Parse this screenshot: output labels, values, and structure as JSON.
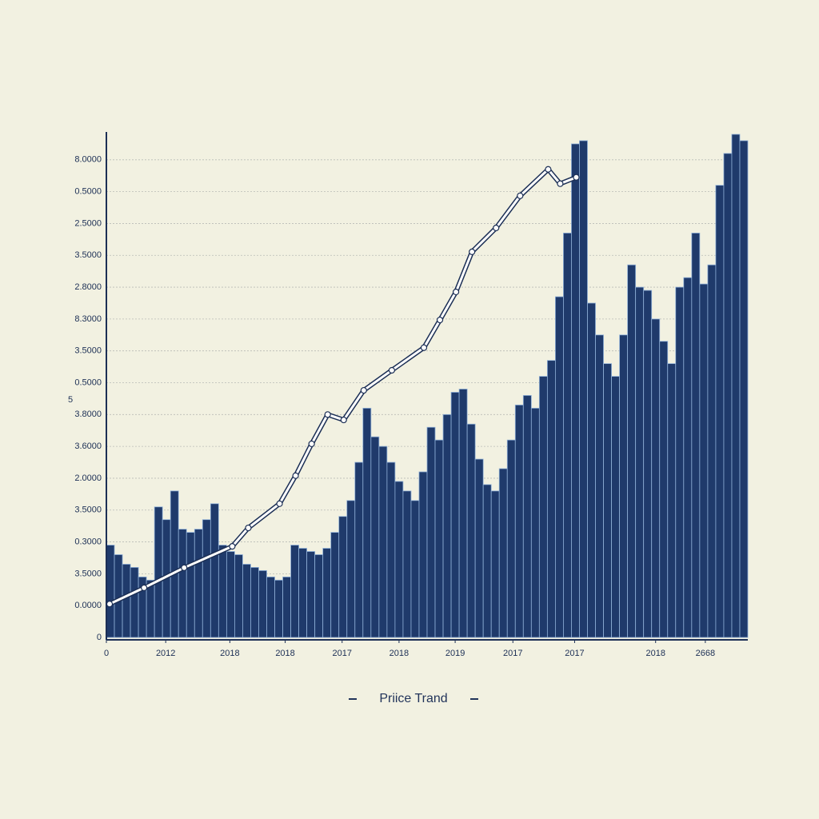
{
  "chart_data": {
    "type": "bar",
    "title": "Priice Trand",
    "ylabel": "5",
    "ylim": [
      0,
      16
    ],
    "xlim": [
      0,
      80
    ],
    "grid": true,
    "yticks": [
      0,
      {
        "value": 1,
        "label": "0.0000"
      },
      {
        "value": 2,
        "label": "3.5000"
      },
      {
        "value": 3,
        "label": "0.3000"
      },
      {
        "value": 4,
        "label": "3.5000"
      },
      {
        "value": 5,
        "label": "2.0000"
      },
      {
        "value": 6,
        "label": "3.6000"
      },
      {
        "value": 7,
        "label": "3.8000"
      },
      {
        "value": 8,
        "label": "0.5000"
      },
      {
        "value": 9,
        "label": "3.5000"
      },
      {
        "value": 10,
        "label": "8.3000"
      },
      {
        "value": 11,
        "label": "2.8000"
      },
      {
        "value": 12,
        "label": "3.5000"
      },
      {
        "value": 13,
        "label": "2.5000"
      },
      {
        "value": 14,
        "label": "0.5000"
      },
      {
        "value": 15,
        "label": "8.0000"
      }
    ],
    "xticks": [
      0,
      {
        "value": 7.4,
        "label": "2012"
      },
      {
        "value": 15.4,
        "label": "2018"
      },
      {
        "value": 22.3,
        "label": "2018"
      },
      {
        "value": 29.4,
        "label": "2017"
      },
      {
        "value": 36.5,
        "label": "2018"
      },
      {
        "value": 43.5,
        "label": "2019"
      },
      {
        "value": 50.7,
        "label": "2017"
      },
      {
        "value": 58.4,
        "label": "2017"
      },
      {
        "value": 68.5,
        "label": "2018"
      },
      {
        "value": 74.7,
        "label": "2668"
      }
    ],
    "series": [
      {
        "type": "bar",
        "color": "#1f3a6b",
        "x": [
          0.5,
          1.5,
          2.5,
          3.5,
          4.5,
          5.5,
          6.5,
          7.5,
          8.5,
          9.5,
          10.5,
          11.5,
          12.5,
          13.5,
          14.5,
          15.5,
          16.5,
          17.5,
          18.5,
          19.5,
          20.5,
          21.5,
          22.5,
          23.5,
          24.5,
          25.5,
          26.5,
          27.5,
          28.5,
          29.5,
          30.5,
          31.5,
          32.5,
          33.5,
          34.5,
          35.5,
          36.5,
          37.5,
          38.5,
          39.5,
          40.5,
          41.5,
          42.5,
          43.5,
          44.5,
          45.5,
          46.5,
          47.5,
          48.5,
          49.5,
          50.5,
          51.5,
          52.5,
          53.5,
          54.5,
          55.5,
          56.5,
          57.5,
          58.5,
          59.5,
          60.5,
          61.5,
          62.5,
          63.5,
          64.5,
          65.5,
          66.5,
          67.5,
          68.5,
          69.5,
          70.5,
          71.5,
          72.5,
          73.5,
          74.5,
          75.5,
          76.5,
          77.5,
          78.5,
          79.5
        ],
        "values": [
          2.9,
          2.6,
          2.3,
          2.2,
          1.9,
          1.8,
          4.1,
          3.7,
          4.6,
          3.4,
          3.3,
          3.4,
          3.7,
          4.2,
          2.9,
          2.7,
          2.6,
          2.3,
          2.2,
          2.1,
          1.9,
          1.8,
          1.9,
          2.9,
          2.8,
          2.7,
          2.6,
          2.8,
          3.3,
          3.8,
          4.3,
          5.5,
          7.2,
          6.3,
          6.0,
          5.5,
          4.9,
          4.6,
          4.3,
          5.2,
          6.6,
          6.2,
          7.0,
          7.7,
          7.8,
          6.7,
          5.6,
          4.8,
          4.6,
          5.3,
          6.2,
          7.3,
          7.6,
          7.2,
          8.2,
          8.7,
          10.7,
          12.7,
          15.5,
          15.6,
          10.5,
          9.5,
          8.6,
          8.2,
          9.5,
          11.7,
          11.0,
          10.9,
          10.0,
          9.3,
          8.6,
          11.0,
          11.3,
          12.7,
          11.1,
          11.7,
          14.2,
          15.2,
          15.8,
          15.6
        ]
      },
      {
        "type": "line",
        "color": "#ffffff",
        "x": [
          0.4,
          4.7,
          9.7,
          15.7,
          17.7,
          21.6,
          23.6,
          25.6,
          27.6,
          29.6,
          32.1,
          35.6,
          39.6,
          41.6,
          43.6,
          45.6,
          48.6,
          51.6,
          55.1,
          56.6,
          58.6
        ],
        "values": [
          1.05,
          1.56,
          2.19,
          2.86,
          3.44,
          4.2,
          5.08,
          6.08,
          7.0,
          6.83,
          7.76,
          8.39,
          9.1,
          9.97,
          10.85,
          12.11,
          12.86,
          13.87,
          14.7,
          14.25,
          14.45
        ]
      }
    ]
  }
}
